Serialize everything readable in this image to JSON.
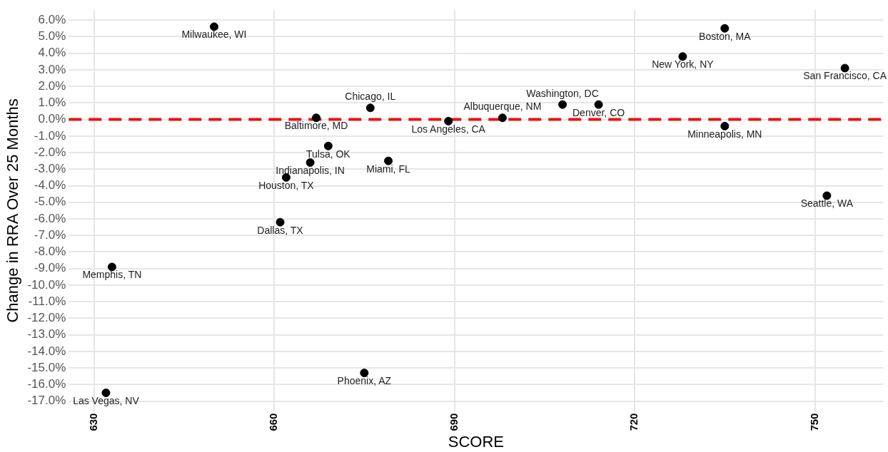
{
  "chart_data": {
    "type": "scatter",
    "xlabel": "SCORE",
    "ylabel": "Change in RRA Over 25 Months",
    "x": [
      650,
      667,
      676,
      689,
      669,
      666,
      679,
      662,
      661,
      633,
      675,
      632,
      698,
      708,
      714,
      728,
      735,
      755,
      735,
      752
    ],
    "series": [
      {
        "color": "#000000",
        "values": [
          5.6,
          0.1,
          0.7,
          -0.1,
          -1.6,
          -2.6,
          -2.5,
          -3.5,
          -6.2,
          -8.9,
          -15.3,
          -16.5,
          0.1,
          0.9,
          0.9,
          3.8,
          5.5,
          3.1,
          -0.4,
          -4.6
        ]
      }
    ],
    "annotations": [
      {
        "text": "Milwaukee, WI",
        "x": 650,
        "y": 5.6
      },
      {
        "text": "Baltimore, MD",
        "x": 667,
        "y": 0.1
      },
      {
        "text": "Chicago, IL",
        "x": 676,
        "y": 0.7
      },
      {
        "text": "Los Angeles, CA",
        "x": 689,
        "y": -0.1
      },
      {
        "text": "Tulsa, OK",
        "x": 669,
        "y": -1.6
      },
      {
        "text": "Indianapolis, IN",
        "x": 666,
        "y": -2.6
      },
      {
        "text": "Miami, FL",
        "x": 679,
        "y": -2.5
      },
      {
        "text": "Houston, TX",
        "x": 662,
        "y": -3.5
      },
      {
        "text": "Dallas, TX",
        "x": 661,
        "y": -6.2
      },
      {
        "text": "Memphis, TN",
        "x": 633,
        "y": -8.9
      },
      {
        "text": "Phoenix, AZ",
        "x": 675,
        "y": -15.3
      },
      {
        "text": "Las Vegas, NV",
        "x": 632,
        "y": -16.5
      },
      {
        "text": "Albuquerque, NM",
        "x": 698,
        "y": 0.1
      },
      {
        "text": "Washington, DC",
        "x": 708,
        "y": 0.9
      },
      {
        "text": "Denver, CO",
        "x": 714,
        "y": 0.9
      },
      {
        "text": "New York, NY",
        "x": 728,
        "y": 3.8
      },
      {
        "text": "Boston, MA",
        "x": 735,
        "y": 5.5
      },
      {
        "text": "San Francisco, CA",
        "x": 755,
        "y": 3.1
      },
      {
        "text": "Minneapolis, MN",
        "x": 735,
        "y": -0.4
      },
      {
        "text": "Seattle, WA",
        "x": 752,
        "y": -4.6
      }
    ],
    "xlim": [
      625.8,
      761.4
    ],
    "xticks": [
      630,
      660,
      690,
      720,
      750
    ],
    "ylim": [
      -17.6,
      6.6
    ],
    "yticks": [
      {
        "value": 6,
        "label": "6.0%"
      },
      {
        "value": 5,
        "label": "5.0%"
      },
      {
        "value": 4,
        "label": "4.0%"
      },
      {
        "value": 3,
        "label": "3.0%"
      },
      {
        "value": 2,
        "label": "2.0%"
      },
      {
        "value": 1,
        "label": "1.0%"
      },
      {
        "value": 0,
        "label": "0.0%"
      },
      {
        "value": -1,
        "label": "-1.0%"
      },
      {
        "value": -2,
        "label": "-2.0%"
      },
      {
        "value": -3,
        "label": "-3.0%"
      },
      {
        "value": -4,
        "label": "-4.0%"
      },
      {
        "value": -5,
        "label": "-5.0%"
      },
      {
        "value": -6,
        "label": "-6.0%"
      },
      {
        "value": -7,
        "label": "-7.0%"
      },
      {
        "value": -8,
        "label": "-8.0%"
      },
      {
        "value": -9,
        "label": "-9.0%"
      },
      {
        "value": -10,
        "label": "-10.0%"
      },
      {
        "value": -11,
        "label": "-11.0%"
      },
      {
        "value": -12,
        "label": "-12.0%"
      },
      {
        "value": -13,
        "label": "-13.0%"
      },
      {
        "value": -14,
        "label": "-14.0%"
      },
      {
        "value": -15,
        "label": "-15.0%"
      },
      {
        "value": -16,
        "label": "-16.0%"
      },
      {
        "value": -17,
        "label": "-17.0%"
      }
    ],
    "ref_lines": [
      {
        "axis": "y",
        "value": 0,
        "color": "#ee1111",
        "line_style": "dashed"
      }
    ],
    "grid": true,
    "legend": false,
    "marker": "circle"
  }
}
